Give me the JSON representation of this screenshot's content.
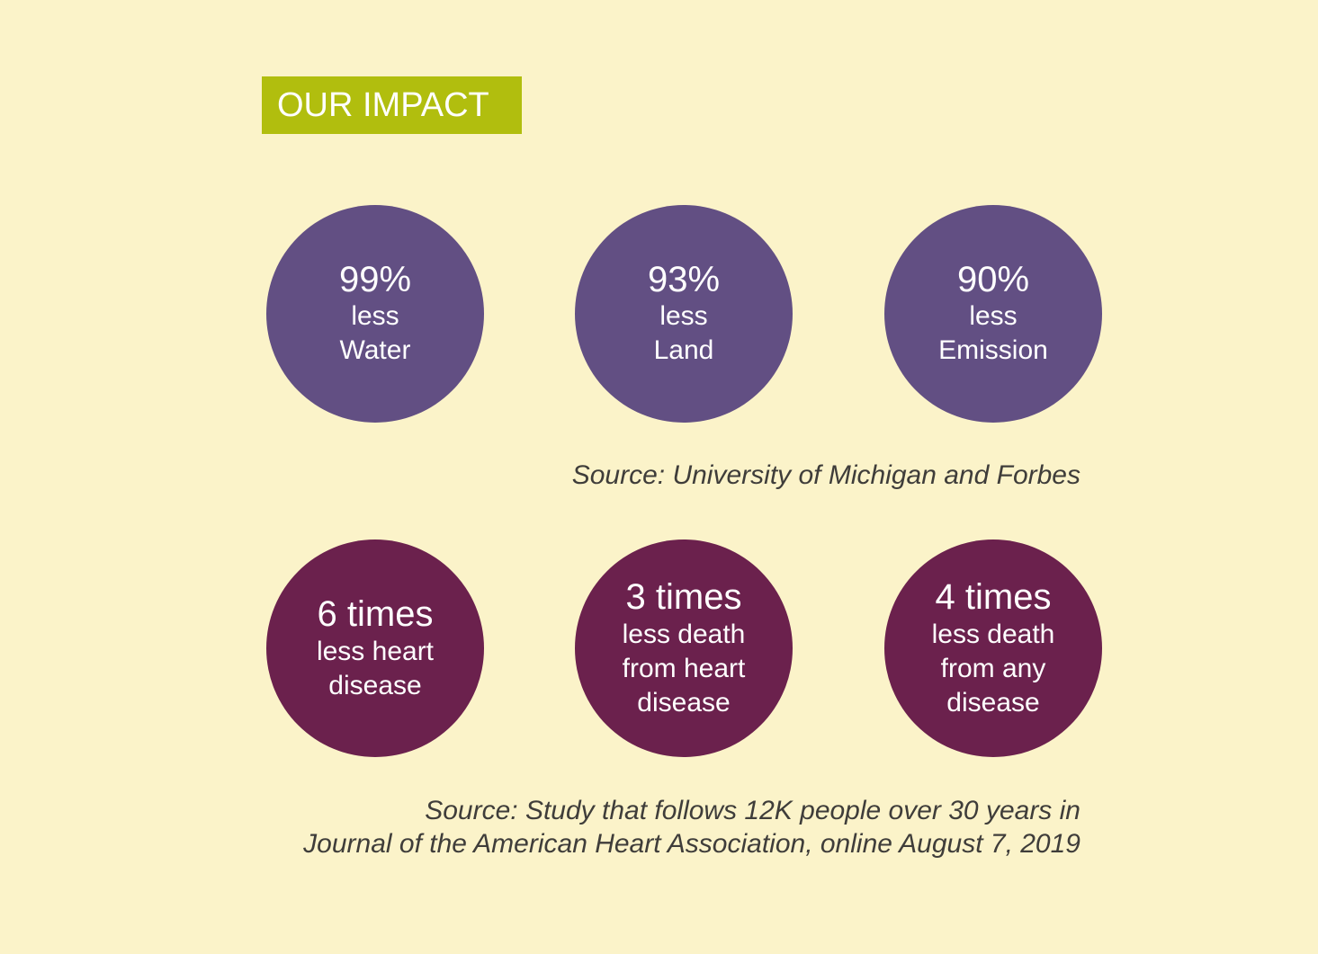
{
  "header": {
    "title": "OUR IMPACT"
  },
  "environment": {
    "items": [
      {
        "value": "99%",
        "line1": "less",
        "line2": "Water"
      },
      {
        "value": "93%",
        "line1": "less",
        "line2": "Land"
      },
      {
        "value": "90%",
        "line1": "less",
        "line2": "Emission"
      }
    ],
    "source": "Source: University of Michigan and Forbes"
  },
  "health": {
    "items": [
      {
        "value": "6 times",
        "line1": "less heart",
        "line2": "disease",
        "line3": ""
      },
      {
        "value": "3 times",
        "line1": "less death",
        "line2": "from heart",
        "line3": "disease"
      },
      {
        "value": "4 times",
        "line1": "less death",
        "line2": "from any",
        "line3": "disease"
      }
    ],
    "source_line1": "Source: Study that follows 12K people over 30 years in",
    "source_line2": "Journal of the American Heart Association, online August 7, 2019"
  },
  "colors": {
    "background": "#fbf3c9",
    "title_badge": "#b1be0e",
    "environment_circle": "#624f83",
    "health_circle": "#6b214d",
    "source_text": "#3f3d3a"
  }
}
